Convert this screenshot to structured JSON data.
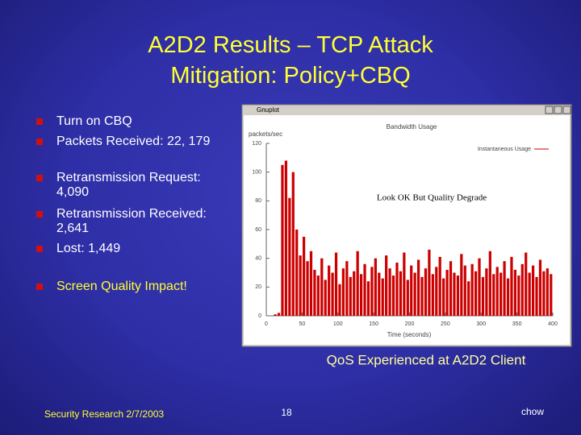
{
  "slide": {
    "title": [
      "A2D2 Results – TCP Attack",
      "Mitigation: Policy+CBQ"
    ],
    "bullets": [
      "Turn on CBQ",
      "Packets Received: 22, 179",
      "Retransmission Request: 4,090",
      "Retransmission Received: 2,641",
      "Lost: 1,449",
      "Screen Quality Impact!"
    ],
    "caption": "QoS Experienced at A2D2 Client",
    "footer": {
      "left": "Security Research 2/7/2003",
      "page": "18",
      "right": "chow"
    }
  },
  "chart_data": {
    "type": "bar",
    "window_title": "Gnuplot",
    "title": "Bandwidth Usage",
    "ylabel": "packets/sec",
    "xlabel": "Time (seconds)",
    "annotation": "Look OK But Quality Degrade",
    "x": [
      0,
      5,
      10,
      15,
      20,
      25,
      30,
      35,
      40,
      45,
      50,
      55,
      60,
      65,
      70,
      75,
      80,
      85,
      90,
      95,
      100,
      105,
      110,
      115,
      120,
      125,
      130,
      135,
      140,
      145,
      150,
      155,
      160,
      165,
      170,
      175,
      180,
      185,
      190,
      195,
      200,
      205,
      210,
      215,
      220,
      225,
      230,
      235,
      240,
      245,
      250,
      255,
      260,
      265,
      270,
      275,
      280,
      285,
      290,
      295,
      300,
      305,
      310,
      315,
      320,
      325,
      330,
      335,
      340,
      345,
      350,
      355,
      360,
      365,
      370,
      375,
      380,
      385,
      390,
      395
    ],
    "series": [
      {
        "name": "Instantaneous Usage",
        "color": "#cc0000",
        "values": [
          0,
          0,
          1,
          2,
          105,
          108,
          82,
          100,
          60,
          42,
          55,
          38,
          45,
          32,
          28,
          40,
          25,
          35,
          30,
          44,
          22,
          33,
          38,
          27,
          31,
          45,
          29,
          36,
          24,
          34,
          40,
          30,
          26,
          42,
          33,
          28,
          37,
          31,
          44,
          25,
          35,
          30,
          39,
          27,
          33,
          46,
          29,
          34,
          41,
          26,
          32,
          38,
          30,
          28,
          43,
          35,
          24,
          36,
          31,
          40,
          27,
          33,
          45,
          29,
          34,
          30,
          38,
          26,
          41,
          32,
          28,
          36,
          44,
          30,
          35,
          27,
          39,
          31,
          33,
          29
        ]
      }
    ],
    "xlim": [
      0,
      400
    ],
    "ylim": [
      0,
      120
    ],
    "xticks": [
      0,
      50,
      100,
      150,
      200,
      250,
      300,
      350,
      400
    ],
    "yticks": [
      0,
      20,
      40,
      60,
      80,
      100,
      120
    ]
  }
}
